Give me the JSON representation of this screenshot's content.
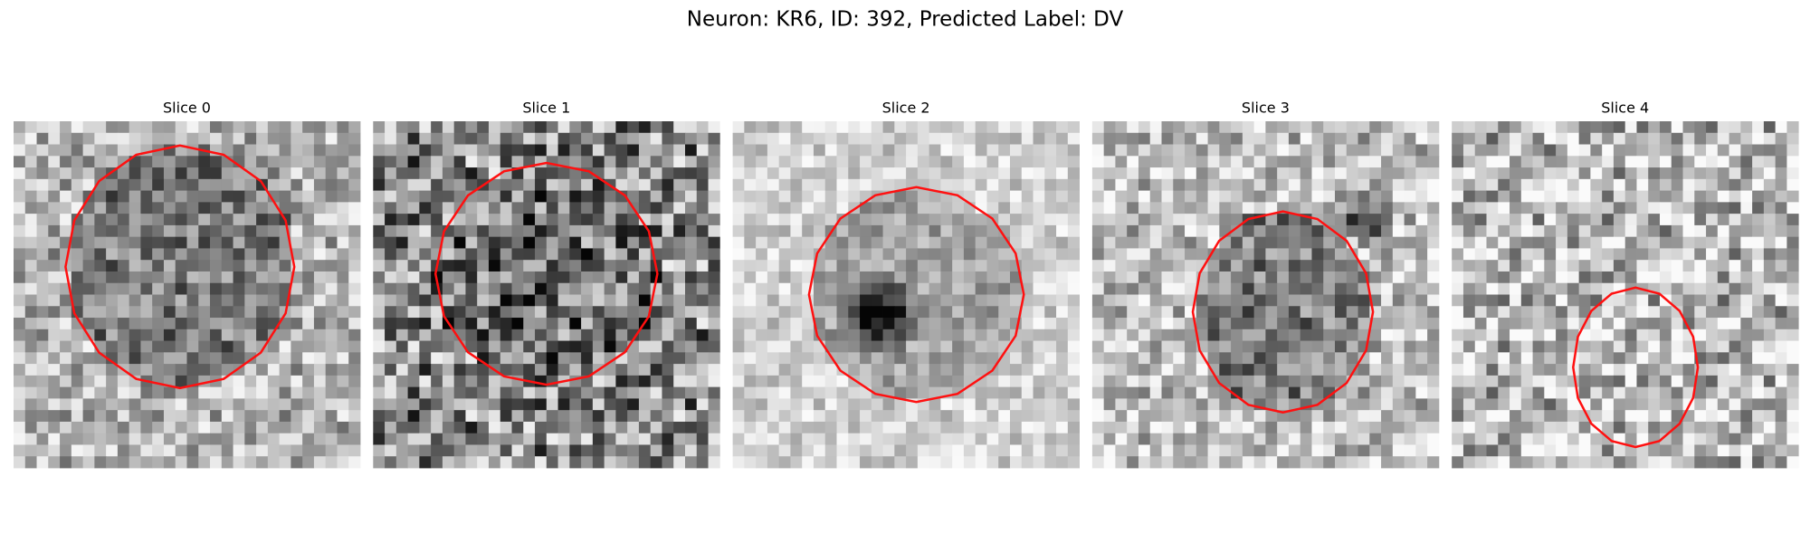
{
  "title": "Neuron: KR6, ID: 392, Predicted Label: DV",
  "panels": [
    {
      "title": "Slice 0"
    },
    {
      "title": "Slice 1"
    },
    {
      "title": "Slice 2"
    },
    {
      "title": "Slice 3"
    },
    {
      "title": "Slice 4"
    }
  ]
}
